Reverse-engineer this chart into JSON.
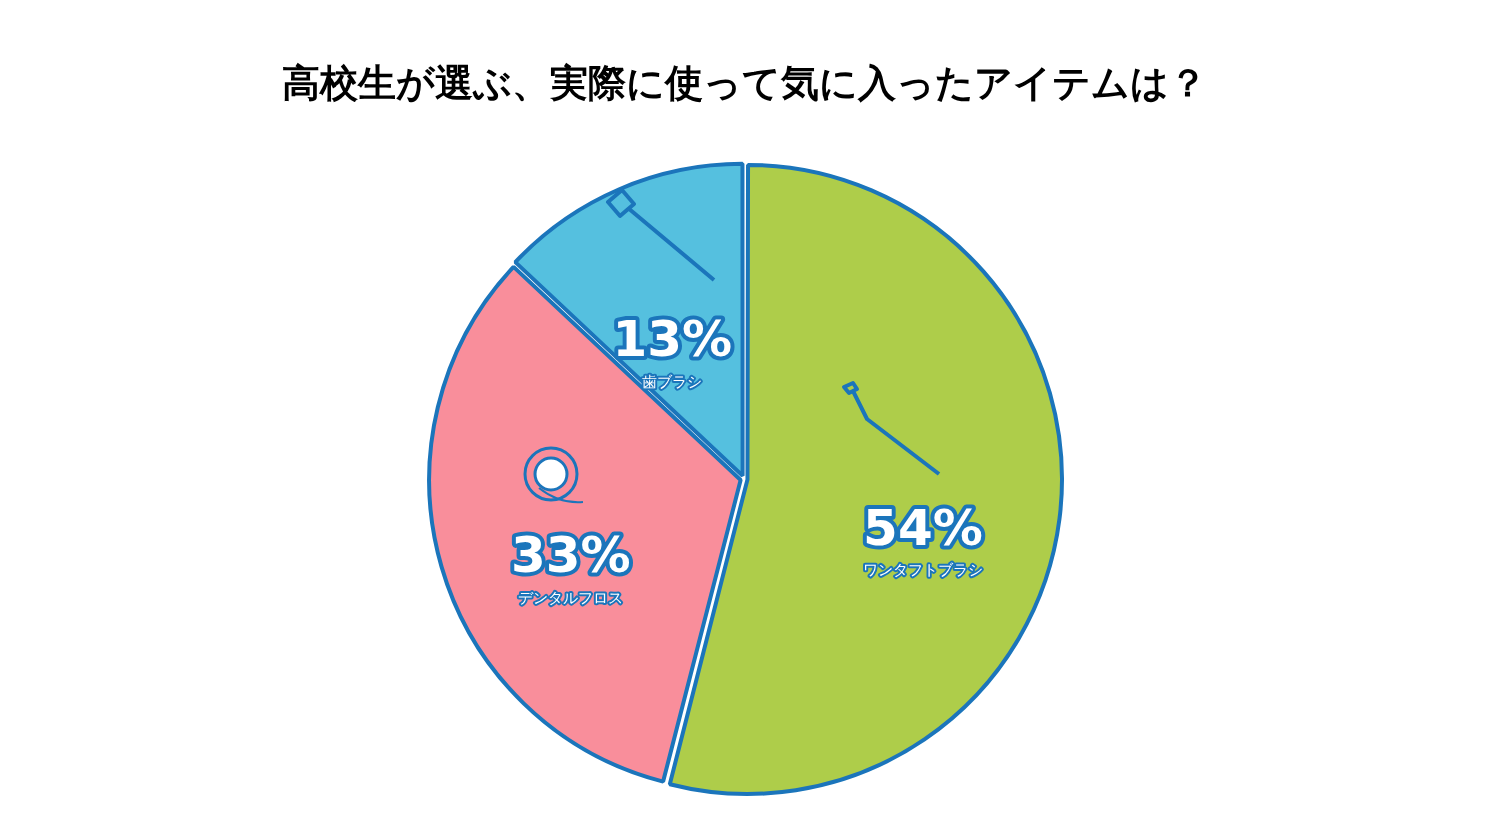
{
  "chart_data": {
    "type": "pie",
    "title": "高校生が選ぶ、実際に使って気に入ったアイテムは？",
    "categories": [
      "ワンタフトブラシ",
      "デンタルフロス",
      "歯ブラシ"
    ],
    "values": [
      54,
      33,
      13
    ],
    "colors": [
      "#aecd4a",
      "#f98e9b",
      "#55c0df"
    ],
    "value_labels": [
      "54%",
      "33%",
      "13%"
    ],
    "legend": false
  }
}
